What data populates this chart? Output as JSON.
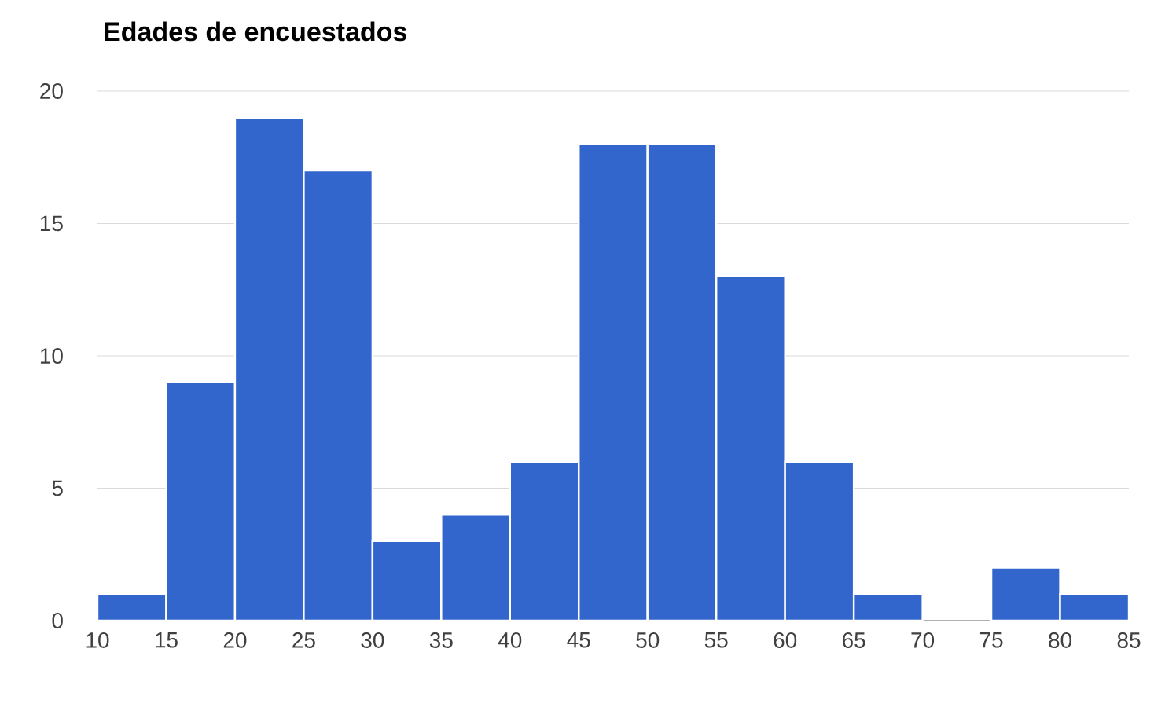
{
  "chart_data": {
    "type": "histogram",
    "title": "Edades de encuestados",
    "bins": [
      10,
      15,
      20,
      25,
      30,
      35,
      40,
      45,
      50,
      55,
      60,
      65,
      70,
      75,
      80,
      85
    ],
    "values": [
      1,
      9,
      19,
      17,
      3,
      4,
      6,
      18,
      18,
      13,
      6,
      1,
      0,
      2,
      1
    ],
    "color": "#3366cc",
    "xlim": [
      10,
      85
    ],
    "xticks": [
      10,
      15,
      20,
      25,
      30,
      35,
      40,
      45,
      50,
      55,
      60,
      65,
      70,
      75,
      80,
      85
    ],
    "ylim": [
      0,
      20
    ],
    "yticks": [
      0,
      5,
      10,
      15,
      20
    ],
    "grid": "y"
  }
}
